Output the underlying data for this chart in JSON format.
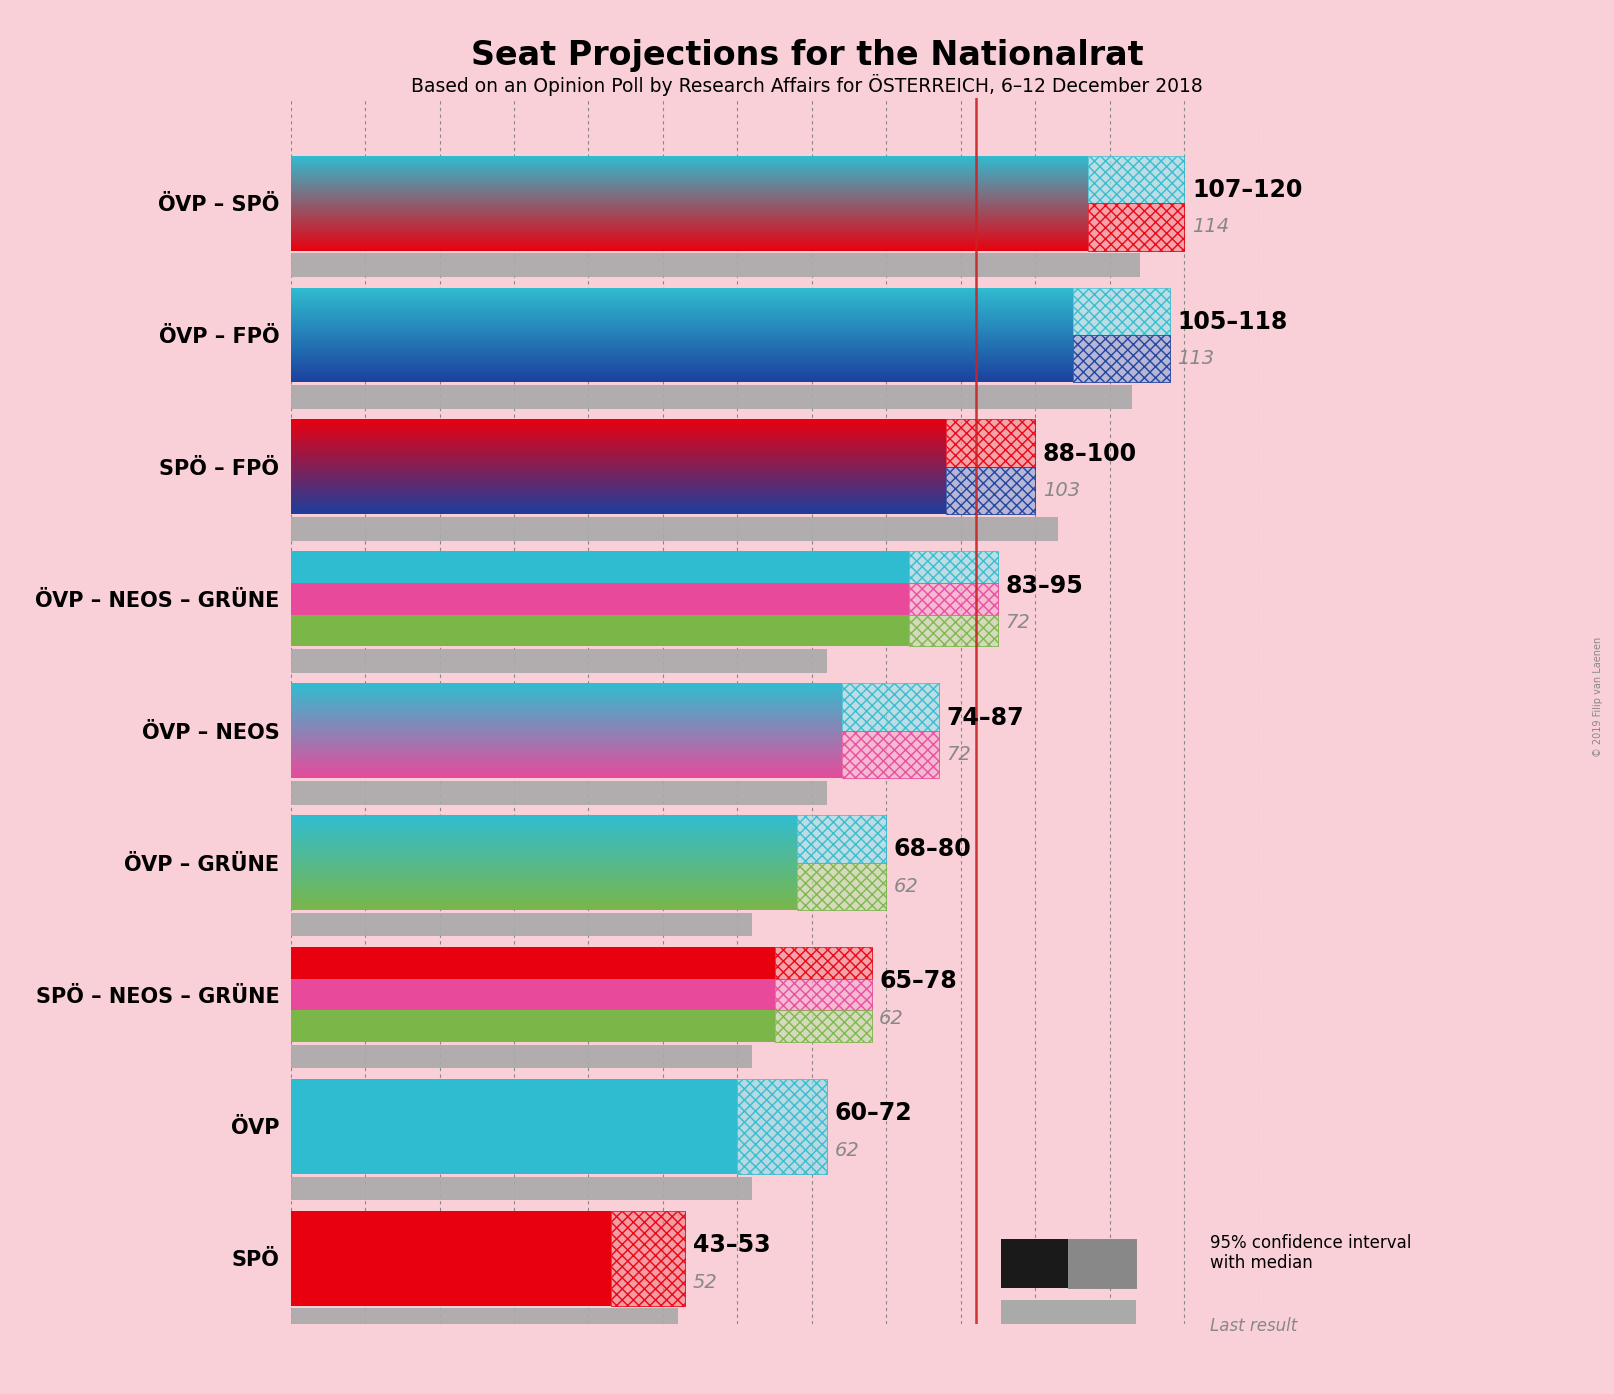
{
  "title": "Seat Projections for the Nationalrat",
  "subtitle": "Based on an Opinion Poll by Research Affairs for ÖSTERREICH, 6–12 December 2018",
  "copyright": "© 2019 Filip van Laenen",
  "background_color": "#f9d0d8",
  "coalitions": [
    {
      "label": "ÖVP – SPÖ",
      "colors": [
        "#30bcd0",
        "#e8000f"
      ],
      "ci_low": 107,
      "ci_high": 120,
      "median": 114,
      "last_result": 114
    },
    {
      "label": "ÖVP – FPÖ",
      "colors": [
        "#30bcd0",
        "#1a3f9e"
      ],
      "ci_low": 105,
      "ci_high": 118,
      "median": 113,
      "last_result": 113
    },
    {
      "label": "SPÖ – FPÖ",
      "colors": [
        "#e8000f",
        "#1a3f9e"
      ],
      "ci_low": 88,
      "ci_high": 100,
      "median": 103,
      "last_result": 103
    },
    {
      "label": "ÖVP – NEOS – GRÜNE",
      "colors": [
        "#30bcd0",
        "#e8499a",
        "#7ab648"
      ],
      "ci_low": 83,
      "ci_high": 95,
      "median": 72,
      "last_result": 72
    },
    {
      "label": "ÖVP – NEOS",
      "colors": [
        "#30bcd0",
        "#e8499a"
      ],
      "ci_low": 74,
      "ci_high": 87,
      "median": 72,
      "last_result": 72
    },
    {
      "label": "ÖVP – GRÜNE",
      "colors": [
        "#30bcd0",
        "#7ab648"
      ],
      "ci_low": 68,
      "ci_high": 80,
      "median": 62,
      "last_result": 62
    },
    {
      "label": "SPÖ – NEOS – GRÜNE",
      "colors": [
        "#e8000f",
        "#e8499a",
        "#7ab648"
      ],
      "ci_low": 65,
      "ci_high": 78,
      "median": 62,
      "last_result": 62
    },
    {
      "label": "ÖVP",
      "colors": [
        "#30bcd0"
      ],
      "ci_low": 60,
      "ci_high": 72,
      "median": 62,
      "last_result": 62
    },
    {
      "label": "SPÖ",
      "colors": [
        "#e8000f"
      ],
      "ci_low": 43,
      "ci_high": 53,
      "median": 52,
      "last_result": 52
    }
  ],
  "xmax": 130,
  "majority_line": 92,
  "last_result_color": "#aaaaaa",
  "label_fontsize": 15,
  "range_fontsize": 17,
  "median_fontsize": 14
}
